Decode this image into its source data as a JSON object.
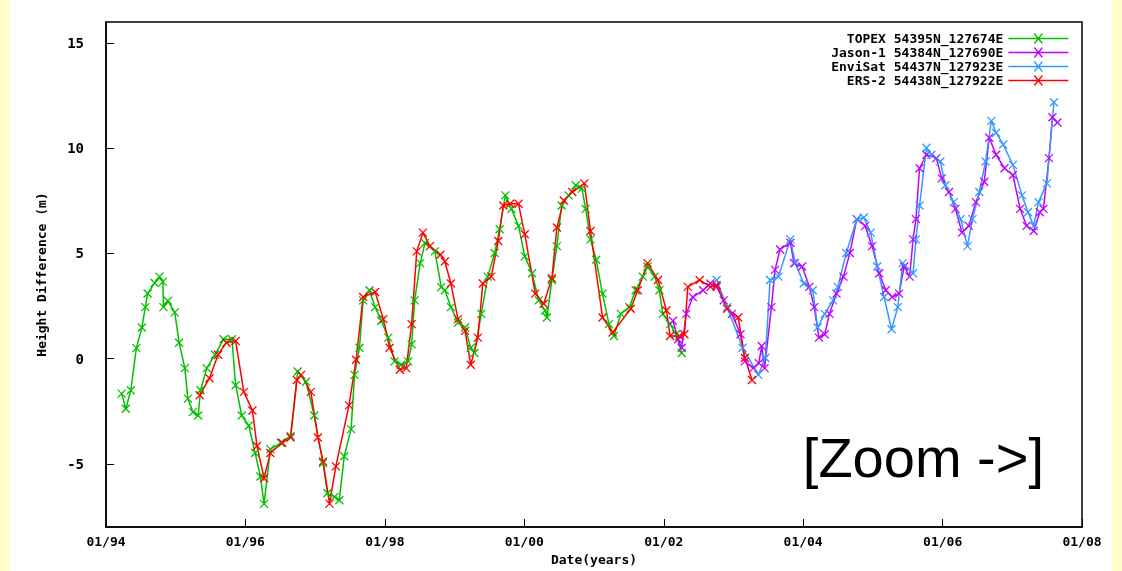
{
  "chart_data": {
    "type": "line",
    "xlabel": "Date(years)",
    "ylabel": "Height Difference (m)",
    "xlim": [
      "1994-01-01",
      "2008-01-01"
    ],
    "xticks": [
      {
        "value": "1994-01",
        "label": "01/94"
      },
      {
        "value": "1996-01",
        "label": "01/96"
      },
      {
        "value": "1998-01",
        "label": "01/98"
      },
      {
        "value": "2000-01",
        "label": "01/00"
      },
      {
        "value": "2002-01",
        "label": "01/02"
      },
      {
        "value": "2004-01",
        "label": "01/04"
      },
      {
        "value": "2006-01",
        "label": "01/06"
      },
      {
        "value": "2008-01",
        "label": "01/08"
      }
    ],
    "ylim": [
      -8,
      16
    ],
    "yticks": [
      -5,
      0,
      5,
      10,
      15
    ],
    "grid": false,
    "legend": "top right",
    "marker": "cross",
    "line_style": "solid",
    "annotations": [
      "[Zoom ->]"
    ],
    "series": [
      {
        "name": "TOPEX 54395N_127674E",
        "color": "#00c000",
        "x": [
          "1994-03-24",
          "1994-04-15",
          "1994-05-11",
          "1994-06-09",
          "1994-07-08",
          "1994-07-26",
          "1994-08-07",
          "1994-09-13",
          "1994-10-08",
          "1994-10-26",
          "1994-10-29",
          "1994-11-21",
          "1994-12-27",
          "1995-01-19",
          "1995-02-18",
          "1995-03-06",
          "1995-04-01",
          "1995-04-29",
          "1995-05-11",
          "1995-06-13",
          "1995-07-26",
          "1995-09-09",
          "1995-10-23",
          "1995-11-11",
          "1995-12-13",
          "1996-01-19",
          "1996-02-21",
          "1996-03-20",
          "1996-04-08",
          "1996-05-11",
          "1996-07-05",
          "1996-08-25",
          "1996-10-01",
          "1996-11-14",
          "1996-12-27",
          "1997-02-11",
          "1997-03-06",
          "1997-04-12",
          "1997-05-07",
          "1997-06-02",
          "1997-07-08",
          "1997-07-26",
          "1997-08-21",
          "1997-09-09",
          "1997-10-12",
          "1997-11-11",
          "1997-12-13",
          "1998-01-19",
          "1998-02-21",
          "1998-03-27",
          "1998-05-03",
          "1998-05-21",
          "1998-06-06",
          "1998-07-05",
          "1998-07-30",
          "1998-09-20",
          "1998-10-23",
          "1998-11-11",
          "1998-12-13",
          "1999-01-19",
          "1999-02-25",
          "1999-03-27",
          "1999-04-15",
          "1999-05-21",
          "1999-06-24",
          "1999-07-30",
          "1999-08-25",
          "1999-09-24",
          "1999-10-26",
          "1999-12-02",
          "2000-01-04",
          "2000-02-11",
          "2000-03-17",
          "2000-04-19",
          "2000-04-29",
          "2000-05-25",
          "2000-06-20",
          "2000-07-15",
          "2000-08-21",
          "2000-09-27",
          "2000-10-29",
          "2000-11-18",
          "2000-12-13",
          "2001-01-12",
          "2001-02-14",
          "2001-03-20",
          "2001-04-15",
          "2001-05-21",
          "2001-07-05",
          "2001-08-07",
          "2001-09-13",
          "2001-10-08",
          "2001-11-14",
          "2001-12-09",
          "2001-12-27",
          "2002-02-03",
          "2002-03-06",
          "2002-04-05"
        ],
        "values": [
          -1.66,
          -2.38,
          -1.5,
          0.5,
          1.48,
          2.45,
          3.1,
          3.6,
          3.9,
          3.65,
          2.45,
          2.75,
          2.2,
          0.76,
          -0.45,
          -1.9,
          -2.54,
          -2.7,
          -1.5,
          -0.45,
          0.19,
          0.92,
          0.92,
          -1.26,
          -2.7,
          -3.19,
          -4.48,
          -5.6,
          -6.9,
          -4.3,
          -4.0,
          -3.67,
          -0.61,
          -1.1,
          -2.7,
          -4.96,
          -6.4,
          -6.57,
          -6.73,
          -4.64,
          -3.35,
          -0.77,
          0.52,
          2.77,
          3.25,
          2.45,
          1.8,
          1.0,
          -0.13,
          -0.29,
          -0.13,
          0.68,
          2.77,
          4.54,
          5.5,
          5.1,
          3.4,
          3.25,
          2.45,
          1.72,
          1.48,
          0.52,
          0.27,
          2.13,
          3.9,
          5.02,
          6.15,
          7.76,
          7.12,
          6.31,
          4.86,
          4.06,
          2.77,
          2.29,
          1.96,
          3.74,
          5.35,
          7.28,
          7.76,
          8.24,
          8.08,
          7.12,
          5.67,
          4.7,
          3.09,
          1.64,
          1.08,
          2.13,
          2.45,
          3.25,
          3.9,
          4.38,
          3.9,
          3.25,
          2.13,
          1.64,
          1.16,
          0.27
        ]
      },
      {
        "name": "Jason-1 54384N_127690E",
        "color": "#c000ff",
        "x": [
          "2002-02-18",
          "2002-03-17",
          "2002-04-05",
          "2002-04-29",
          "2002-06-02",
          "2002-07-26",
          "2002-09-02",
          "2002-10-05",
          "2002-11-11",
          "2002-12-24",
          "2003-02-07",
          "2003-03-02",
          "2003-04-15",
          "2003-05-14",
          "2003-05-29",
          "2003-06-13",
          "2003-07-19",
          "2003-08-07",
          "2003-09-02",
          "2003-10-26",
          "2003-11-14",
          "2003-12-27",
          "2004-02-03",
          "2004-02-28",
          "2004-03-24",
          "2004-04-23",
          "2004-05-18",
          "2004-06-24",
          "2004-07-30",
          "2004-09-02",
          "2004-10-08",
          "2004-11-21",
          "2004-12-27",
          "2005-02-03",
          "2005-03-09",
          "2005-04-12",
          "2005-05-18",
          "2005-06-13",
          "2005-07-12",
          "2005-07-30",
          "2005-08-14",
          "2005-09-02",
          "2005-10-08",
          "2005-11-29",
          "2005-12-27",
          "2006-02-03",
          "2006-03-09",
          "2006-04-12",
          "2006-05-18",
          "2006-06-24",
          "2006-08-07",
          "2006-09-02",
          "2006-10-08",
          "2006-11-21",
          "2007-01-04",
          "2007-02-11",
          "2007-03-17",
          "2007-04-23",
          "2007-05-25",
          "2007-06-13",
          "2007-07-12",
          "2007-07-30",
          "2007-08-25"
        ],
        "values": [
          1.8,
          0.92,
          0.52,
          2.13,
          2.93,
          3.25,
          3.57,
          3.41,
          2.77,
          2.13,
          1.16,
          -0.13,
          -0.45,
          -0.21,
          0.6,
          -0.45,
          2.45,
          4.22,
          5.19,
          5.51,
          4.54,
          4.38,
          3.41,
          2.45,
          1.0,
          1.16,
          2.13,
          3.09,
          3.9,
          5.02,
          6.63,
          6.31,
          5.35,
          4.06,
          3.25,
          2.93,
          3.09,
          4.38,
          3.9,
          5.67,
          6.63,
          9.05,
          9.69,
          9.53,
          8.57,
          7.92,
          7.12,
          5.99,
          6.31,
          7.44,
          8.41,
          10.5,
          9.69,
          9.05,
          8.73,
          7.12,
          6.31,
          6.07,
          6.96,
          7.12,
          9.53,
          11.47,
          11.22
        ]
      },
      {
        "name": "EnviSat 54437N_127923E",
        "color": "#3399ff",
        "x": [
          "2002-10-05",
          "2002-11-29",
          "2003-02-18",
          "2003-05-11",
          "2003-06-17",
          "2003-07-12",
          "2003-08-25",
          "2003-10-26",
          "2003-11-21",
          "2004-01-04",
          "2004-02-21",
          "2004-03-17",
          "2004-04-23",
          "2004-06-06",
          "2004-07-01",
          "2004-08-14",
          "2004-10-08",
          "2004-11-14",
          "2004-12-20",
          "2005-01-23",
          "2005-02-28",
          "2005-04-08",
          "2005-05-11",
          "2005-06-06",
          "2005-07-30",
          "2005-08-14",
          "2005-09-02",
          "2005-10-08",
          "2005-11-03",
          "2005-12-20",
          "2006-01-15",
          "2006-02-28",
          "2006-04-05",
          "2006-05-11",
          "2006-06-06",
          "2006-07-12",
          "2006-08-14",
          "2006-09-13",
          "2006-10-08",
          "2006-11-14",
          "2007-01-04",
          "2007-02-21",
          "2007-03-24",
          "2007-04-23",
          "2007-05-18",
          "2007-07-01",
          "2007-08-07"
        ],
        "values": [
          3.74,
          2.45,
          0.52,
          -0.77,
          0.03,
          3.74,
          3.9,
          5.67,
          4.54,
          3.57,
          3.25,
          1.48,
          2.13,
          2.77,
          3.41,
          5.02,
          6.63,
          6.71,
          5.99,
          4.38,
          2.93,
          1.4,
          2.45,
          4.54,
          4.06,
          5.67,
          7.28,
          10.02,
          9.69,
          9.37,
          8.24,
          7.44,
          6.63,
          5.35,
          6.63,
          7.92,
          9.37,
          11.3,
          10.74,
          10.18,
          9.21,
          7.76,
          6.96,
          6.31,
          7.44,
          8.33,
          12.19
        ]
      },
      {
        "name": "ERS-2 54438N_127922E",
        "color": "#ff0000",
        "x": [
          "1995-05-07",
          "1995-06-27",
          "1995-08-11",
          "1995-09-24",
          "1995-11-11",
          "1995-12-24",
          "1996-02-07",
          "1996-03-02",
          "1996-04-08",
          "1996-05-11",
          "1996-07-12",
          "1996-08-25",
          "1996-09-27",
          "1996-10-19",
          "1996-12-09",
          "1997-01-15",
          "1997-02-11",
          "1997-03-17",
          "1997-04-19",
          "1997-06-27",
          "1997-08-03",
          "1997-09-09",
          "1997-11-11",
          "1997-12-24",
          "1998-01-26",
          "1998-03-20",
          "1998-04-23",
          "1998-05-21",
          "1998-06-17",
          "1998-07-19",
          "1998-08-25",
          "1998-10-19",
          "1998-11-11",
          "1998-12-13",
          "1999-01-19",
          "1999-02-25",
          "1999-03-27",
          "1999-05-03",
          "1999-05-29",
          "1999-07-12",
          "1999-08-18",
          "1999-09-13",
          "1999-10-19",
          "1999-12-02",
          "2000-01-04",
          "2000-02-28",
          "2000-04-12",
          "2000-05-25",
          "2000-06-20",
          "2000-07-26",
          "2000-09-09",
          "2000-11-11",
          "2000-12-13",
          "2001-02-14",
          "2001-04-08",
          "2001-07-12",
          "2001-08-18",
          "2001-10-08",
          "2001-12-02",
          "2002-01-15",
          "2002-02-03",
          "2002-03-24",
          "2002-04-19",
          "2002-05-07",
          "2002-07-08",
          "2002-09-02",
          "2002-10-05",
          "2002-11-29",
          "2003-01-26",
          "2003-03-02",
          "2003-04-08"
        ],
        "values": [
          -1.74,
          -0.93,
          0.19,
          0.76,
          0.84,
          -1.58,
          -2.46,
          -4.15,
          -5.68,
          -4.48,
          -4.0,
          -3.75,
          -1.01,
          -0.77,
          -1.58,
          -3.75,
          -4.88,
          -6.89,
          -5.12,
          -2.22,
          -0.05,
          2.93,
          3.17,
          1.88,
          0.52,
          -0.53,
          -0.45,
          1.64,
          5.1,
          5.99,
          5.35,
          4.94,
          4.62,
          3.57,
          1.88,
          1.32,
          -0.29,
          1.0,
          3.57,
          3.9,
          5.59,
          7.28,
          7.36,
          7.36,
          5.91,
          3.09,
          2.61,
          3.82,
          6.23,
          7.52,
          7.92,
          8.33,
          6.07,
          1.96,
          1.24,
          2.37,
          3.25,
          4.54,
          3.74,
          2.29,
          1.08,
          1.08,
          1.16,
          3.41,
          3.74,
          3.41,
          3.49,
          2.37,
          1.96,
          0.03,
          -1.01
        ]
      }
    ]
  }
}
